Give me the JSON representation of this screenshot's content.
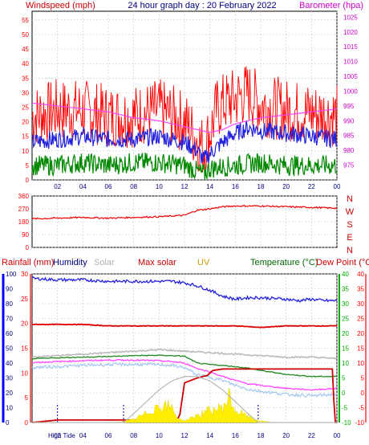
{
  "colors": {
    "wind_label": "#cc0000",
    "title": "#000080",
    "barometer": "#cc00cc",
    "rain": "#cc0000",
    "humidity": "#000080",
    "solar": "#b0b0b0",
    "max_solar": "#cc0000",
    "uv": "#cc9900",
    "temperature": "#006600",
    "dew_point": "#cc0000",
    "axis_blue": "#0000ff",
    "axis_green": "#00aa00",
    "axis_red": "#ff0000"
  },
  "chart_data": [
    {
      "type": "line",
      "title": "24 hour graph day : 20 February 2022",
      "left_axis_label": "Windspeed (mph)",
      "right_axis_label": "Barometer (hpa)",
      "x_ticks": [
        "02",
        "04",
        "06",
        "08",
        "10",
        "12",
        "14",
        "16",
        "18",
        "20",
        "22",
        "00"
      ],
      "ylim": [
        0,
        58
      ],
      "y_ticks": [
        "0",
        "5",
        "10",
        "15",
        "20",
        "25",
        "30",
        "35",
        "40",
        "45",
        "50",
        "55"
      ],
      "y2lim": [
        970,
        1027
      ],
      "y2_ticks": [
        "975",
        "980",
        "985",
        "990",
        "995",
        "1000",
        "1005",
        "1010",
        "1015",
        "1020",
        "1025"
      ],
      "series": [
        {
          "label": "gust",
          "x": [
            0,
            2,
            4,
            6,
            8,
            10,
            11,
            12,
            13,
            13.5,
            14,
            14.5,
            15,
            16,
            17,
            18,
            20,
            22,
            24
          ],
          "values": [
            22,
            24,
            24,
            22,
            22,
            24,
            22,
            20,
            14,
            11,
            16,
            24,
            26,
            28,
            30,
            26,
            24,
            23,
            22
          ]
        },
        {
          "label": "average",
          "x": [
            0,
            2,
            4,
            6,
            8,
            10,
            11,
            12,
            13,
            13.5,
            14,
            15,
            16,
            17,
            18,
            20,
            22,
            24
          ],
          "values": [
            13,
            14,
            15,
            14,
            14,
            15,
            14,
            13,
            10,
            7,
            9,
            13,
            16,
            18,
            17,
            16,
            15,
            14
          ]
        },
        {
          "label": "minimum",
          "x": [
            0,
            2,
            4,
            6,
            8,
            10,
            12,
            13.5,
            14,
            16,
            18,
            20,
            22,
            24
          ],
          "values": [
            5,
            5,
            6,
            5,
            6,
            6,
            5,
            2,
            4,
            5,
            6,
            5,
            5,
            5
          ]
        },
        {
          "label": "barometer",
          "x": [
            0,
            2,
            4,
            6,
            8,
            10,
            12,
            13,
            14,
            15,
            16,
            18,
            20,
            22,
            24
          ],
          "values": [
            996,
            995,
            994,
            993,
            991,
            990,
            988,
            987,
            986,
            987,
            989,
            991,
            992,
            993,
            994
          ]
        }
      ]
    },
    {
      "type": "line",
      "title": "",
      "x_ticks": [],
      "ylim": [
        0,
        360
      ],
      "y_ticks": [
        "0",
        "90",
        "180",
        "270",
        "360"
      ],
      "compass": [
        "N",
        "W",
        "S",
        "E",
        "N"
      ],
      "series": [
        {
          "label": "direction",
          "x": [
            0,
            2,
            4,
            6,
            8,
            10,
            11,
            12,
            13,
            14,
            15,
            16,
            18,
            20,
            22,
            24
          ],
          "values": [
            200,
            205,
            210,
            205,
            210,
            215,
            220,
            225,
            260,
            270,
            285,
            290,
            290,
            285,
            280,
            275
          ]
        }
      ]
    },
    {
      "type": "line",
      "title": "",
      "legend": [
        "Rainfall (mm)",
        "Humidity",
        "Solar",
        "Max solar",
        "UV",
        "Temperature (°C)",
        "Dew Point (°C)"
      ],
      "x_ticks": [
        "02",
        "04",
        "06",
        "08",
        "10",
        "12",
        "14",
        "16",
        "18",
        "20",
        "22",
        "00"
      ],
      "high_tide_label": "High Tide",
      "humidity_axis": {
        "ylim": [
          0,
          100
        ],
        "ticks": [
          "0",
          "10",
          "20",
          "30",
          "40",
          "50",
          "60",
          "70",
          "80",
          "90",
          "100"
        ]
      },
      "rain_axis": {
        "ylim": [
          0,
          30
        ],
        "ticks": [
          "0",
          "5",
          "10",
          "15",
          "20",
          "25",
          "30"
        ]
      },
      "temp_axis": {
        "ylim": [
          -10,
          40
        ],
        "ticks": [
          "-10",
          "-5",
          "0",
          "5",
          "10",
          "15",
          "20",
          "25",
          "30",
          "35",
          "40"
        ]
      },
      "series": [
        {
          "label": "Humidity",
          "axis": "humidity",
          "x": [
            0,
            2,
            4,
            6,
            8,
            10,
            11,
            12,
            13,
            14,
            15,
            16,
            17,
            18,
            20,
            21,
            22,
            23,
            24
          ],
          "values": [
            97,
            96,
            96,
            95,
            95,
            95,
            95,
            94,
            92,
            89,
            85,
            83,
            84,
            84,
            83,
            82,
            83,
            82,
            82
          ]
        },
        {
          "label": "Max solar",
          "axis": "humidity",
          "x": [
            0,
            2,
            4,
            6,
            8,
            10,
            12,
            14,
            16,
            18,
            20,
            22,
            24
          ],
          "values": [
            66,
            66,
            66,
            65,
            65,
            65,
            65,
            65,
            65,
            64,
            65,
            65,
            65
          ]
        },
        {
          "label": "Solar",
          "axis": "humidity",
          "x": [
            0,
            2,
            4,
            6,
            8,
            10,
            12,
            14,
            16,
            18,
            20,
            22,
            24
          ],
          "values": [
            44,
            45,
            46,
            47,
            48,
            49,
            48,
            47,
            46,
            45,
            44,
            44,
            43
          ]
        },
        {
          "label": "Temperature (°C)",
          "axis": "temp",
          "x": [
            0,
            2,
            4,
            6,
            8,
            10,
            11,
            12,
            13,
            14,
            15,
            16,
            17,
            18,
            20,
            22,
            24
          ],
          "values": [
            11.5,
            11.8,
            12,
            12.2,
            12.5,
            12.6,
            12.5,
            12.3,
            10,
            9.5,
            9.2,
            8.8,
            8.3,
            7.5,
            6.2,
            5.5,
            5.5
          ]
        },
        {
          "label": "Dew Point (°C)",
          "axis": "temp",
          "x": [
            0,
            2,
            4,
            6,
            8,
            10,
            11,
            12,
            13,
            14,
            15,
            16,
            17,
            18,
            20,
            22,
            24
          ],
          "values": [
            10.2,
            10.5,
            10.8,
            11,
            11,
            10.8,
            10.5,
            10,
            8.2,
            7,
            5.5,
            4.2,
            3,
            2.5,
            1.5,
            1,
            1.5
          ]
        },
        {
          "label": "Apparent",
          "axis": "temp",
          "x": [
            0,
            2,
            4,
            6,
            8,
            10,
            11,
            12,
            13,
            14,
            15,
            16,
            17,
            18,
            20,
            22,
            24
          ],
          "values": [
            8.5,
            8.8,
            9.2,
            9.5,
            9.5,
            9.5,
            9.2,
            8.5,
            6,
            5.2,
            4.2,
            2.5,
            1.2,
            0.5,
            -0.5,
            -1,
            -0.5
          ]
        },
        {
          "label": "Rainfall (mm)",
          "axis": "rain",
          "x": [
            0,
            2,
            4,
            6,
            8,
            10,
            11,
            11.6,
            12,
            13,
            13.8,
            14.2,
            15,
            16,
            18,
            20,
            22,
            23.7,
            23.8,
            24
          ],
          "values": [
            0,
            0.5,
            0.5,
            0.5,
            0.5,
            0.5,
            0.5,
            1,
            8,
            9,
            9.5,
            10.5,
            10.8,
            10.8,
            10.8,
            10.8,
            10.8,
            10.8,
            0,
            0
          ]
        },
        {
          "label": "UV",
          "axis": "humidity",
          "x": [
            0,
            2,
            4,
            6,
            7,
            8,
            9,
            10,
            11,
            11.5,
            12,
            13,
            14,
            15,
            15.5,
            16,
            17,
            18,
            19,
            24
          ],
          "values": [
            0,
            0,
            0,
            0,
            0.5,
            2,
            6,
            12,
            10,
            3,
            1,
            5,
            8,
            10,
            17,
            8,
            4,
            1,
            0,
            0
          ]
        },
        {
          "label": "Solar curve",
          "axis": "humidity",
          "x": [
            7.2,
            8,
            9,
            10,
            11,
            12,
            13,
            14,
            15,
            16,
            17,
            17.8
          ],
          "values": [
            0,
            6,
            14,
            22,
            28,
            31,
            31,
            28,
            22,
            14,
            6,
            0
          ]
        }
      ]
    }
  ]
}
